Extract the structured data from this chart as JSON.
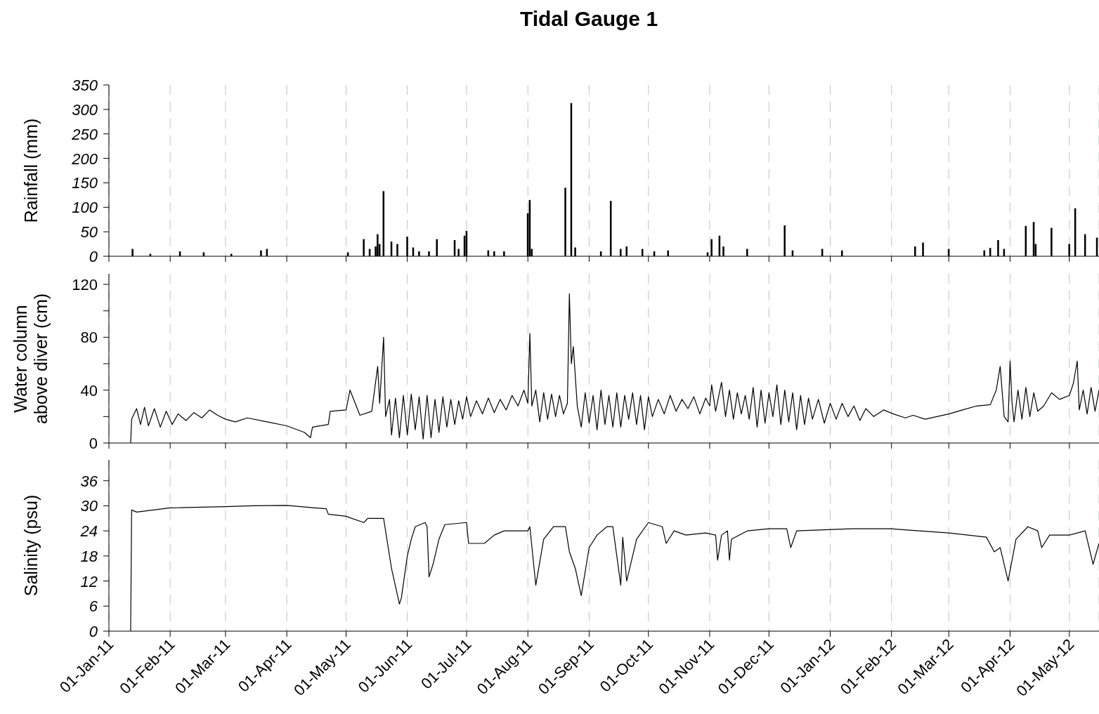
{
  "chart_data": [
    {
      "type": "bar",
      "title": "Tidal Gauge 1",
      "ylabel": "Rainfall (mm)",
      "color": "#000000",
      "grid": "x",
      "tick_labels": "y",
      "xlim": [
        "2011-01-01",
        "2012-05-16"
      ],
      "xticks": [
        {
          "value": "2011-01-01",
          "label": null
        },
        {
          "value": "2011-02-01",
          "label": null
        },
        {
          "value": "2011-03-01",
          "label": null
        },
        {
          "value": "2011-04-01",
          "label": null
        },
        {
          "value": "2011-05-01",
          "label": null
        },
        {
          "value": "2011-06-01",
          "label": null
        },
        {
          "value": "2011-07-01",
          "label": null
        },
        {
          "value": "2011-08-01",
          "label": null
        },
        {
          "value": "2011-09-01",
          "label": null
        },
        {
          "value": "2011-10-01",
          "label": null
        },
        {
          "value": "2011-11-01",
          "label": null
        },
        {
          "value": "2011-12-01",
          "label": null
        },
        {
          "value": "2012-01-01",
          "label": null
        },
        {
          "value": "2012-02-01",
          "label": null
        },
        {
          "value": "2012-03-01",
          "label": null
        },
        {
          "value": "2012-04-01",
          "label": null
        },
        {
          "value": "2012-05-01",
          "label": null
        }
      ],
      "ylim": [
        0,
        350
      ],
      "yticks": [
        0,
        50,
        100,
        150,
        200,
        250,
        300,
        350
      ],
      "x": [
        "2011-01-13",
        "2011-01-22",
        "2011-02-06",
        "2011-02-18",
        "2011-03-04",
        "2011-03-19",
        "2011-03-22",
        "2011-05-02",
        "2011-05-10",
        "2011-05-13",
        "2011-05-16",
        "2011-05-17",
        "2011-05-18",
        "2011-05-20",
        "2011-05-24",
        "2011-05-27",
        "2011-06-01",
        "2011-06-04",
        "2011-06-07",
        "2011-06-12",
        "2011-06-16",
        "2011-06-25",
        "2011-06-27",
        "2011-06-30",
        "2011-07-01",
        "2011-07-12",
        "2011-07-15",
        "2011-07-20",
        "2011-08-01",
        "2011-08-02",
        "2011-08-03",
        "2011-08-20",
        "2011-08-23",
        "2011-08-25",
        "2011-09-07",
        "2011-09-12",
        "2011-09-17",
        "2011-09-20",
        "2011-09-28",
        "2011-10-04",
        "2011-10-11",
        "2011-10-31",
        "2011-11-02",
        "2011-11-06",
        "2011-11-08",
        "2011-11-20",
        "2011-12-09",
        "2011-12-13",
        "2011-12-28",
        "2012-01-07",
        "2012-02-13",
        "2012-02-17",
        "2012-03-01",
        "2012-03-19",
        "2012-03-22",
        "2012-03-26",
        "2012-03-29",
        "2012-04-09",
        "2012-04-13",
        "2012-04-14",
        "2012-04-22",
        "2012-05-01",
        "2012-05-04",
        "2012-05-09",
        "2012-05-15"
      ],
      "values": [
        15,
        5,
        10,
        8,
        5,
        12,
        15,
        8,
        35,
        15,
        20,
        45,
        25,
        133,
        30,
        25,
        40,
        18,
        10,
        10,
        35,
        33,
        15,
        42,
        52,
        12,
        10,
        10,
        88,
        115,
        15,
        140,
        313,
        18,
        10,
        113,
        15,
        20,
        15,
        10,
        12,
        8,
        35,
        42,
        20,
        15,
        63,
        12,
        15,
        12,
        20,
        28,
        15,
        12,
        17,
        33,
        15,
        62,
        70,
        25,
        58,
        25,
        98,
        45,
        38
      ]
    },
    {
      "type": "line",
      "ylabel": "Water column above diver (cm)",
      "color": "#000000",
      "grid": "x",
      "tick_labels": "y",
      "xlim": [
        "2011-01-01",
        "2012-05-16"
      ],
      "xticks": [
        {
          "value": "2011-01-01",
          "label": null
        },
        {
          "value": "2011-02-01",
          "label": null
        },
        {
          "value": "2011-03-01",
          "label": null
        },
        {
          "value": "2011-04-01",
          "label": null
        },
        {
          "value": "2011-05-01",
          "label": null
        },
        {
          "value": "2011-06-01",
          "label": null
        },
        {
          "value": "2011-07-01",
          "label": null
        },
        {
          "value": "2011-08-01",
          "label": null
        },
        {
          "value": "2011-09-01",
          "label": null
        },
        {
          "value": "2011-10-01",
          "label": null
        },
        {
          "value": "2011-11-01",
          "label": null
        },
        {
          "value": "2011-12-01",
          "label": null
        },
        {
          "value": "2012-01-01",
          "label": null
        },
        {
          "value": "2012-02-01",
          "label": null
        },
        {
          "value": "2012-03-01",
          "label": null
        },
        {
          "value": "2012-04-01",
          "label": null
        },
        {
          "value": "2012-05-01",
          "label": null
        }
      ],
      "ylim": [
        0,
        128
      ],
      "yticks": [
        0,
        {
          "value": 20,
          "label": null
        },
        40,
        {
          "value": 60,
          "label": null
        },
        80,
        {
          "value": 100,
          "label": null
        },
        120
      ],
      "x": [
        "2011-01-12",
        "2011-01-12T12:00",
        "2011-01-15",
        "2011-01-17",
        "2011-01-19",
        "2011-01-21",
        "2011-01-24",
        "2011-01-27",
        "2011-01-30",
        "2011-02-02",
        "2011-02-05",
        "2011-02-09",
        "2011-02-13",
        "2011-02-17",
        "2011-02-21",
        "2011-02-25",
        "2011-03-01",
        "2011-03-06",
        "2011-03-12",
        "2011-03-22",
        "2011-04-01",
        "2011-04-10",
        "2011-04-13",
        "2011-04-14",
        "2011-04-22",
        "2011-04-23",
        "2011-05-01",
        "2011-05-03",
        "2011-05-08",
        "2011-05-14",
        "2011-05-17",
        "2011-05-18",
        "2011-05-20",
        "2011-05-21",
        "2011-05-23",
        "2011-05-24",
        "2011-05-26",
        "2011-05-28",
        "2011-05-30",
        "2011-06-01",
        "2011-06-03",
        "2011-06-05",
        "2011-06-07",
        "2011-06-09",
        "2011-06-11",
        "2011-06-13",
        "2011-06-15",
        "2011-06-17",
        "2011-06-19",
        "2011-06-21",
        "2011-06-23",
        "2011-06-25",
        "2011-06-27",
        "2011-06-29",
        "2011-07-01",
        "2011-07-03",
        "2011-07-06",
        "2011-07-09",
        "2011-07-12",
        "2011-07-15",
        "2011-07-18",
        "2011-07-21",
        "2011-07-24",
        "2011-07-27",
        "2011-07-30",
        "2011-08-01",
        "2011-08-02",
        "2011-08-03",
        "2011-08-05",
        "2011-08-07",
        "2011-08-09",
        "2011-08-11",
        "2011-08-13",
        "2011-08-15",
        "2011-08-17",
        "2011-08-19",
        "2011-08-21",
        "2011-08-22",
        "2011-08-23",
        "2011-08-24",
        "2011-08-26",
        "2011-08-28",
        "2011-08-30",
        "2011-09-01",
        "2011-09-03",
        "2011-09-05",
        "2011-09-07",
        "2011-09-09",
        "2011-09-11",
        "2011-09-13",
        "2011-09-15",
        "2011-09-17",
        "2011-09-19",
        "2011-09-21",
        "2011-09-23",
        "2011-09-25",
        "2011-09-27",
        "2011-09-29",
        "2011-10-01",
        "2011-10-03",
        "2011-10-06",
        "2011-10-09",
        "2011-10-12",
        "2011-10-15",
        "2011-10-18",
        "2011-10-21",
        "2011-10-24",
        "2011-10-27",
        "2011-10-30",
        "2011-11-01",
        "2011-11-02",
        "2011-11-04",
        "2011-11-07",
        "2011-11-09",
        "2011-11-11",
        "2011-11-13",
        "2011-11-15",
        "2011-11-17",
        "2011-11-19",
        "2011-11-21",
        "2011-11-23",
        "2011-11-25",
        "2011-11-27",
        "2011-11-29",
        "2011-12-01",
        "2011-12-03",
        "2011-12-05",
        "2011-12-07",
        "2011-12-09",
        "2011-12-11",
        "2011-12-13",
        "2011-12-15",
        "2011-12-17",
        "2011-12-19",
        "2011-12-21",
        "2011-12-23",
        "2011-12-26",
        "2011-12-29",
        "2012-01-01",
        "2012-01-04",
        "2012-01-07",
        "2012-01-10",
        "2012-01-13",
        "2012-01-16",
        "2012-01-19",
        "2012-01-23",
        "2012-01-28",
        "2012-02-02",
        "2012-02-08",
        "2012-02-12",
        "2012-02-18",
        "2012-02-24",
        "2012-03-01",
        "2012-03-08",
        "2012-03-15",
        "2012-03-22",
        "2012-03-25",
        "2012-03-27",
        "2012-03-29",
        "2012-03-31",
        "2012-04-01",
        "2012-04-02",
        "2012-04-03",
        "2012-04-05",
        "2012-04-07",
        "2012-04-09",
        "2012-04-11",
        "2012-04-13",
        "2012-04-15",
        "2012-04-18",
        "2012-04-22",
        "2012-04-26",
        "2012-05-01",
        "2012-05-03",
        "2012-05-05",
        "2012-05-06",
        "2012-05-08",
        "2012-05-10",
        "2012-05-12",
        "2012-05-14",
        "2012-05-16"
      ],
      "values": [
        0,
        18,
        26,
        14,
        27,
        13,
        26,
        12,
        24,
        14,
        22,
        17,
        23,
        19,
        25,
        21,
        18,
        16,
        19,
        16,
        13,
        8,
        4,
        12,
        14,
        24,
        25,
        40,
        21,
        24,
        58,
        30,
        80,
        20,
        33,
        6,
        34,
        4,
        36,
        6,
        37,
        10,
        35,
        3,
        36,
        4,
        33,
        8,
        35,
        12,
        33,
        14,
        32,
        18,
        35,
        20,
        32,
        22,
        34,
        23,
        33,
        25,
        36,
        28,
        40,
        30,
        83,
        28,
        40,
        16,
        38,
        18,
        37,
        20,
        36,
        22,
        30,
        113,
        60,
        73,
        28,
        12,
        38,
        15,
        36,
        10,
        40,
        14,
        36,
        12,
        38,
        12,
        36,
        18,
        38,
        14,
        36,
        10,
        35,
        20,
        33,
        22,
        36,
        24,
        33,
        26,
        35,
        22,
        34,
        28,
        44,
        24,
        46,
        20,
        40,
        18,
        38,
        22,
        36,
        18,
        42,
        12,
        40,
        15,
        38,
        20,
        44,
        14,
        40,
        16,
        38,
        10,
        36,
        14,
        34,
        18,
        33,
        15,
        30,
        18,
        30,
        20,
        28,
        17,
        26,
        20,
        25,
        22,
        19,
        21,
        18,
        20,
        22,
        25,
        28,
        29,
        40,
        58,
        20,
        16,
        62,
        30,
        16,
        40,
        18,
        42,
        20,
        38,
        24,
        28,
        38,
        33,
        36,
        45,
        62,
        25,
        40,
        22,
        42,
        24,
        40
      ]
    },
    {
      "type": "line",
      "ylabel": "Salinity (psu)",
      "color": "#000000",
      "grid": "x",
      "xlim": [
        "2011-01-01",
        "2012-05-16"
      ],
      "xticks": [
        {
          "value": "2011-01-01",
          "label": "01-Jan-11"
        },
        {
          "value": "2011-02-01",
          "label": "01-Feb-11"
        },
        {
          "value": "2011-03-01",
          "label": "01-Mar-11"
        },
        {
          "value": "2011-04-01",
          "label": "01-Apr-11"
        },
        {
          "value": "2011-05-01",
          "label": "01-May-11"
        },
        {
          "value": "2011-06-01",
          "label": "01-Jun-11"
        },
        {
          "value": "2011-07-01",
          "label": "01-Jul-11"
        },
        {
          "value": "2011-08-01",
          "label": "01-Aug-11"
        },
        {
          "value": "2011-09-01",
          "label": "01-Sep-11"
        },
        {
          "value": "2011-10-01",
          "label": "01-Oct-11"
        },
        {
          "value": "2011-11-01",
          "label": "01-Nov-11"
        },
        {
          "value": "2011-12-01",
          "label": "01-Dec-11"
        },
        {
          "value": "2012-01-01",
          "label": "01-Jan-12"
        },
        {
          "value": "2012-02-01",
          "label": "01-Feb-12"
        },
        {
          "value": "2012-03-01",
          "label": "01-Mar-12"
        },
        {
          "value": "2012-04-01",
          "label": "01-Apr-12"
        },
        {
          "value": "2012-05-01",
          "label": "01-May-12"
        }
      ],
      "ylim": [
        0,
        41
      ],
      "yticks": [
        0,
        6,
        12,
        18,
        24,
        30,
        36
      ],
      "x": [
        "2011-01-12",
        "2011-01-12T12:00",
        "2011-01-15",
        "2011-02-01",
        "2011-03-01",
        "2011-03-15",
        "2011-04-01",
        "2011-04-15",
        "2011-04-21",
        "2011-04-22",
        "2011-05-01",
        "2011-05-10",
        "2011-05-12",
        "2011-05-20",
        "2011-05-24",
        "2011-05-28",
        "2011-05-29",
        "2011-06-01",
        "2011-06-03",
        "2011-06-05",
        "2011-06-10",
        "2011-06-11",
        "2011-06-12",
        "2011-06-14",
        "2011-06-17",
        "2011-06-20",
        "2011-07-01",
        "2011-07-02",
        "2011-07-10",
        "2011-07-15",
        "2011-07-20",
        "2011-08-01",
        "2011-08-02",
        "2011-08-05",
        "2011-08-09",
        "2011-08-14",
        "2011-08-20",
        "2011-08-22",
        "2011-08-25",
        "2011-08-28",
        "2011-09-01",
        "2011-09-05",
        "2011-09-10",
        "2011-09-13",
        "2011-09-17",
        "2011-09-18",
        "2011-09-20",
        "2011-09-25",
        "2011-10-01",
        "2011-10-08",
        "2011-10-10",
        "2011-10-14",
        "2011-10-20",
        "2011-10-30",
        "2011-11-04",
        "2011-11-05",
        "2011-11-07",
        "2011-11-10",
        "2011-11-11",
        "2011-11-12",
        "2011-11-20",
        "2011-12-01",
        "2011-12-10",
        "2011-12-12",
        "2011-12-15",
        "2012-01-12",
        "2012-02-01",
        "2012-03-01",
        "2012-03-20",
        "2012-03-24",
        "2012-03-27",
        "2012-03-31",
        "2012-04-04",
        "2012-04-10",
        "2012-04-15",
        "2012-04-17",
        "2012-04-21",
        "2012-05-01",
        "2012-05-09",
        "2012-05-13",
        "2012-05-16"
      ],
      "values": [
        0,
        29,
        28.5,
        29.5,
        29.8,
        30,
        30.1,
        29.5,
        29.3,
        28,
        27.5,
        26,
        27,
        27,
        15,
        6.5,
        8,
        18,
        22,
        25,
        26,
        25,
        13,
        16,
        22,
        25.5,
        26,
        21,
        21,
        23,
        24,
        24,
        25,
        11,
        22,
        25,
        25,
        19,
        15,
        8.5,
        20,
        23,
        25,
        25,
        11,
        22.5,
        12,
        22,
        26,
        25,
        21,
        24,
        23,
        23.5,
        23,
        17,
        23,
        24,
        17,
        22,
        24,
        24.5,
        24.5,
        20,
        24,
        24.5,
        24.5,
        23.5,
        22.5,
        19,
        20,
        12,
        22,
        25,
        24,
        20,
        23,
        23,
        24,
        16,
        21
      ]
    }
  ]
}
